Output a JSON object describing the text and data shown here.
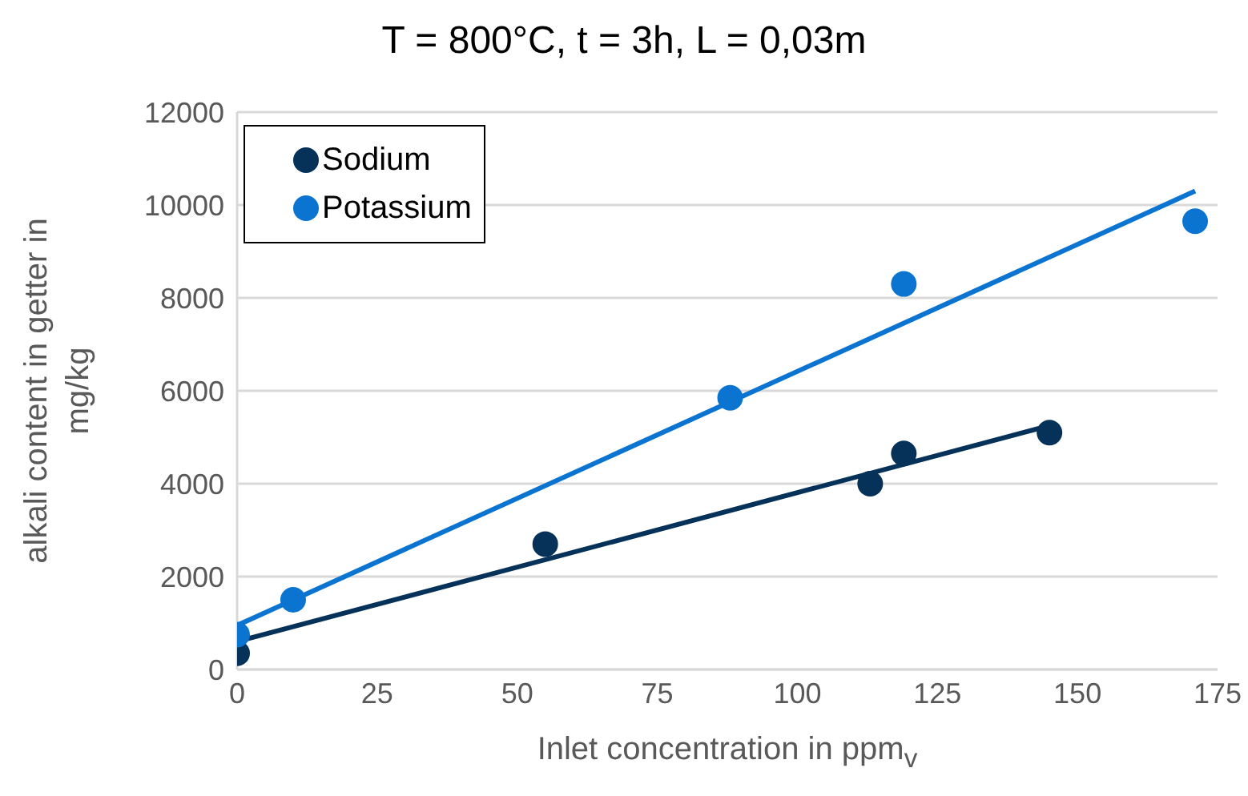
{
  "chart_data": {
    "type": "scatter",
    "title": "T = 800°C, t = 3h, L = 0,03m",
    "xlabel": "Inlet concentration in ppm$_{v}$",
    "ylabel": "alkali content in getter in mg/kg",
    "xlim": [
      0,
      175
    ],
    "xticks": [
      0,
      25,
      50,
      75,
      100,
      125,
      150,
      175
    ],
    "ylim": [
      0,
      12000
    ],
    "yticks": [
      0,
      2000,
      4000,
      6000,
      8000,
      10000,
      12000
    ],
    "grid": "y",
    "legend": "top left",
    "marker": "circle",
    "series": [
      {
        "name": "Sodium",
        "color": "#06325a",
        "x": [
          0,
          55,
          113,
          119,
          145
        ],
        "values": [
          350,
          2700,
          4000,
          4650,
          5100
        ]
      },
      {
        "name": "Potassium",
        "color": "#0b74d0",
        "x": [
          0,
          10,
          88,
          119,
          171
        ],
        "values": [
          750,
          1500,
          5850,
          8300,
          9650
        ]
      },
      {
        "type": "line",
        "marker": "none",
        "color": "#06325a",
        "x": [
          0,
          145
        ],
        "values": [
          600,
          5250
        ]
      },
      {
        "type": "line",
        "marker": "none",
        "color": "#0b74d0",
        "x": [
          0,
          171
        ],
        "values": [
          950,
          10300
        ]
      }
    ]
  }
}
